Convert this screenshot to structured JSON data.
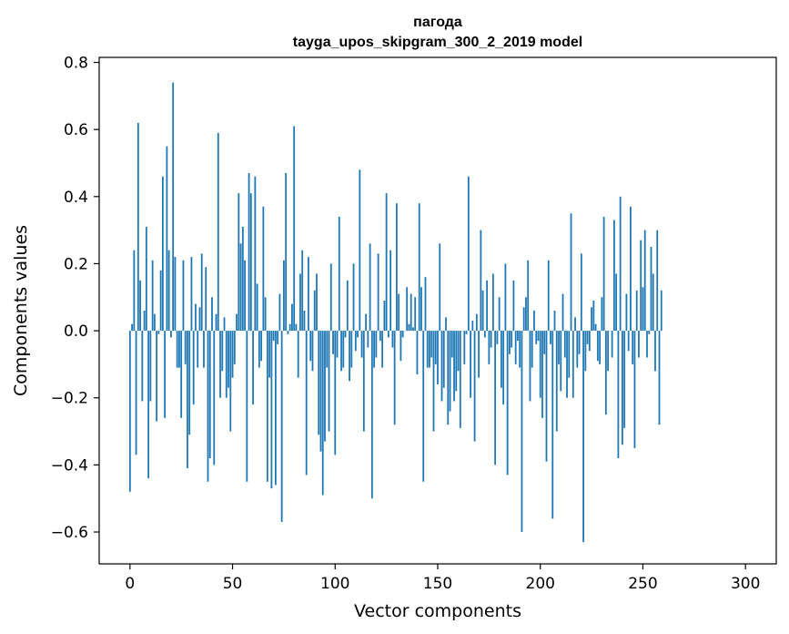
{
  "chart_data": {
    "type": "bar",
    "title_line1": "пагода",
    "title_line2": "tayga_upos_skipgram_300_2_2019 model",
    "xlabel": "Vector components",
    "ylabel": "Components values",
    "xlim": [
      -15,
      315
    ],
    "ylim": [
      -0.695,
      0.815
    ],
    "xticks": [
      0,
      50,
      100,
      150,
      200,
      250,
      300
    ],
    "xtick_labels": [
      "0",
      "50",
      "100",
      "150",
      "200",
      "250",
      "300"
    ],
    "yticks": [
      -0.6,
      -0.4,
      -0.2,
      0.0,
      0.2,
      0.4,
      0.6,
      0.8
    ],
    "ytick_labels": [
      "−0.6",
      "−0.4",
      "−0.2",
      "0.0",
      "0.2",
      "0.4",
      "0.6",
      "0.8"
    ],
    "color": "#1f77b4",
    "values": [
      -0.48,
      0.02,
      0.24,
      -0.37,
      0.62,
      0.15,
      -0.21,
      0.06,
      0.31,
      -0.44,
      -0.21,
      0.21,
      0.05,
      -0.27,
      -0.01,
      0.18,
      0.46,
      -0.26,
      0.55,
      0.24,
      -0.02,
      0.74,
      0.22,
      -0.11,
      -0.11,
      -0.26,
      0.21,
      -0.1,
      -0.41,
      -0.31,
      0.22,
      -0.22,
      0.08,
      -0.11,
      0.07,
      0.23,
      -0.11,
      0.19,
      -0.45,
      -0.38,
      0.1,
      -0.4,
      0.05,
      0.59,
      -0.2,
      -0.12,
      0.04,
      -0.2,
      -0.17,
      -0.3,
      -0.14,
      -0.1,
      0.05,
      0.41,
      0.26,
      0.31,
      0.21,
      -0.45,
      0.47,
      0.41,
      -0.22,
      0.46,
      0.14,
      -0.11,
      -0.09,
      0.37,
      0.1,
      -0.45,
      -0.14,
      -0.47,
      -0.03,
      -0.46,
      -0.04,
      0.11,
      -0.57,
      0.21,
      0.47,
      -0.01,
      0.02,
      0.08,
      0.61,
      0.02,
      -0.14,
      0.17,
      0.24,
      0.06,
      -0.43,
      0.22,
      -0.09,
      -0.12,
      0.12,
      0.17,
      -0.31,
      -0.36,
      -0.49,
      -0.33,
      -0.11,
      -0.3,
      0.2,
      -0.07,
      -0.37,
      -0.08,
      0.34,
      -0.12,
      -0.11,
      -0.02,
      0.15,
      -0.15,
      -0.11,
      0.2,
      -0.06,
      -0.02,
      0.48,
      -0.08,
      -0.3,
      0.05,
      -0.05,
      0.26,
      -0.5,
      -0.11,
      -0.08,
      0.23,
      -0.03,
      -0.11,
      0.09,
      0.41,
      -0.02,
      0.24,
      -0.05,
      -0.28,
      0.38,
      0.11,
      -0.09,
      -0.02,
      0.0,
      0.13,
      0.02,
      0.11,
      0.01,
      0.1,
      -0.13,
      0.38,
      0.13,
      -0.45,
      0.16,
      -0.11,
      -0.11,
      -0.08,
      -0.3,
      -0.1,
      -0.16,
      0.26,
      -0.21,
      -0.17,
      0.04,
      -0.28,
      -0.24,
      -0.08,
      -0.21,
      -0.18,
      -0.12,
      -0.29,
      0.0,
      -0.1,
      -0.01,
      0.46,
      -0.2,
      0.03,
      -0.33,
      0.05,
      -0.14,
      0.3,
      0.12,
      -0.02,
      0.15,
      -0.1,
      -0.05,
      0.17,
      -0.4,
      -0.04,
      0.1,
      -0.17,
      -0.22,
      0.2,
      -0.43,
      -0.07,
      -0.05,
      0.15,
      -0.1,
      -0.03,
      -0.11,
      -0.6,
      0.07,
      0.1,
      0.21,
      -0.21,
      -0.11,
      0.06,
      -0.04,
      -0.03,
      -0.2,
      -0.26,
      -0.07,
      -0.39,
      0.21,
      -0.04,
      -0.56,
      0.06,
      -0.3,
      -0.1,
      -0.18,
      0.11,
      -0.08,
      -0.2,
      -0.14,
      0.35,
      -0.2,
      0.04,
      -0.11,
      -0.07,
      0.23,
      -0.63,
      -0.12,
      -0.04,
      -0.06,
      0.07,
      0.09,
      0.02,
      -0.09,
      -0.1,
      0.1,
      0.34,
      -0.25,
      -0.12,
      0.0,
      -0.08,
      0.33,
      0.17,
      -0.38,
      0.4,
      -0.34,
      -0.29,
      0.11,
      -0.06,
      0.37,
      -0.1,
      -0.35,
      0.12,
      -0.08,
      0.27,
      0.13,
      0.3,
      -0.08,
      -0.01,
      0.25,
      0.17,
      -0.12,
      0.3,
      -0.28,
      0.12
    ]
  }
}
